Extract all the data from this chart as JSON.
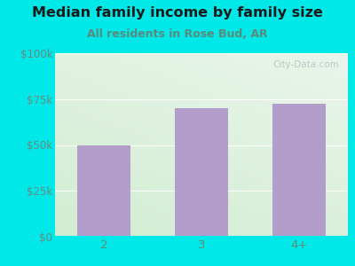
{
  "title": "Median family income by family size",
  "subtitle": "All residents in Rose Bud, AR",
  "categories": [
    "2",
    "3",
    "4+"
  ],
  "values": [
    50000,
    70000,
    72500
  ],
  "bar_color": "#b39dca",
  "background_color": "#00e8e8",
  "plot_bg_topleft": "#d6edd8",
  "plot_bg_topright": "#e8f0f0",
  "plot_bg_bottomleft": "#d0ecd0",
  "plot_bg_bottomright": "#f5f5f5",
  "yticks": [
    0,
    25000,
    50000,
    75000,
    100000
  ],
  "ytick_labels": [
    "$0",
    "$25k",
    "$50k",
    "$75k",
    "$100k"
  ],
  "ylim": [
    0,
    100000
  ],
  "title_fontsize": 11.5,
  "subtitle_fontsize": 9,
  "tick_color": "#5a8a7a",
  "ytick_color": "#6a8a80",
  "watermark": "City-Data.com",
  "grid_color": "#c8ddd0"
}
